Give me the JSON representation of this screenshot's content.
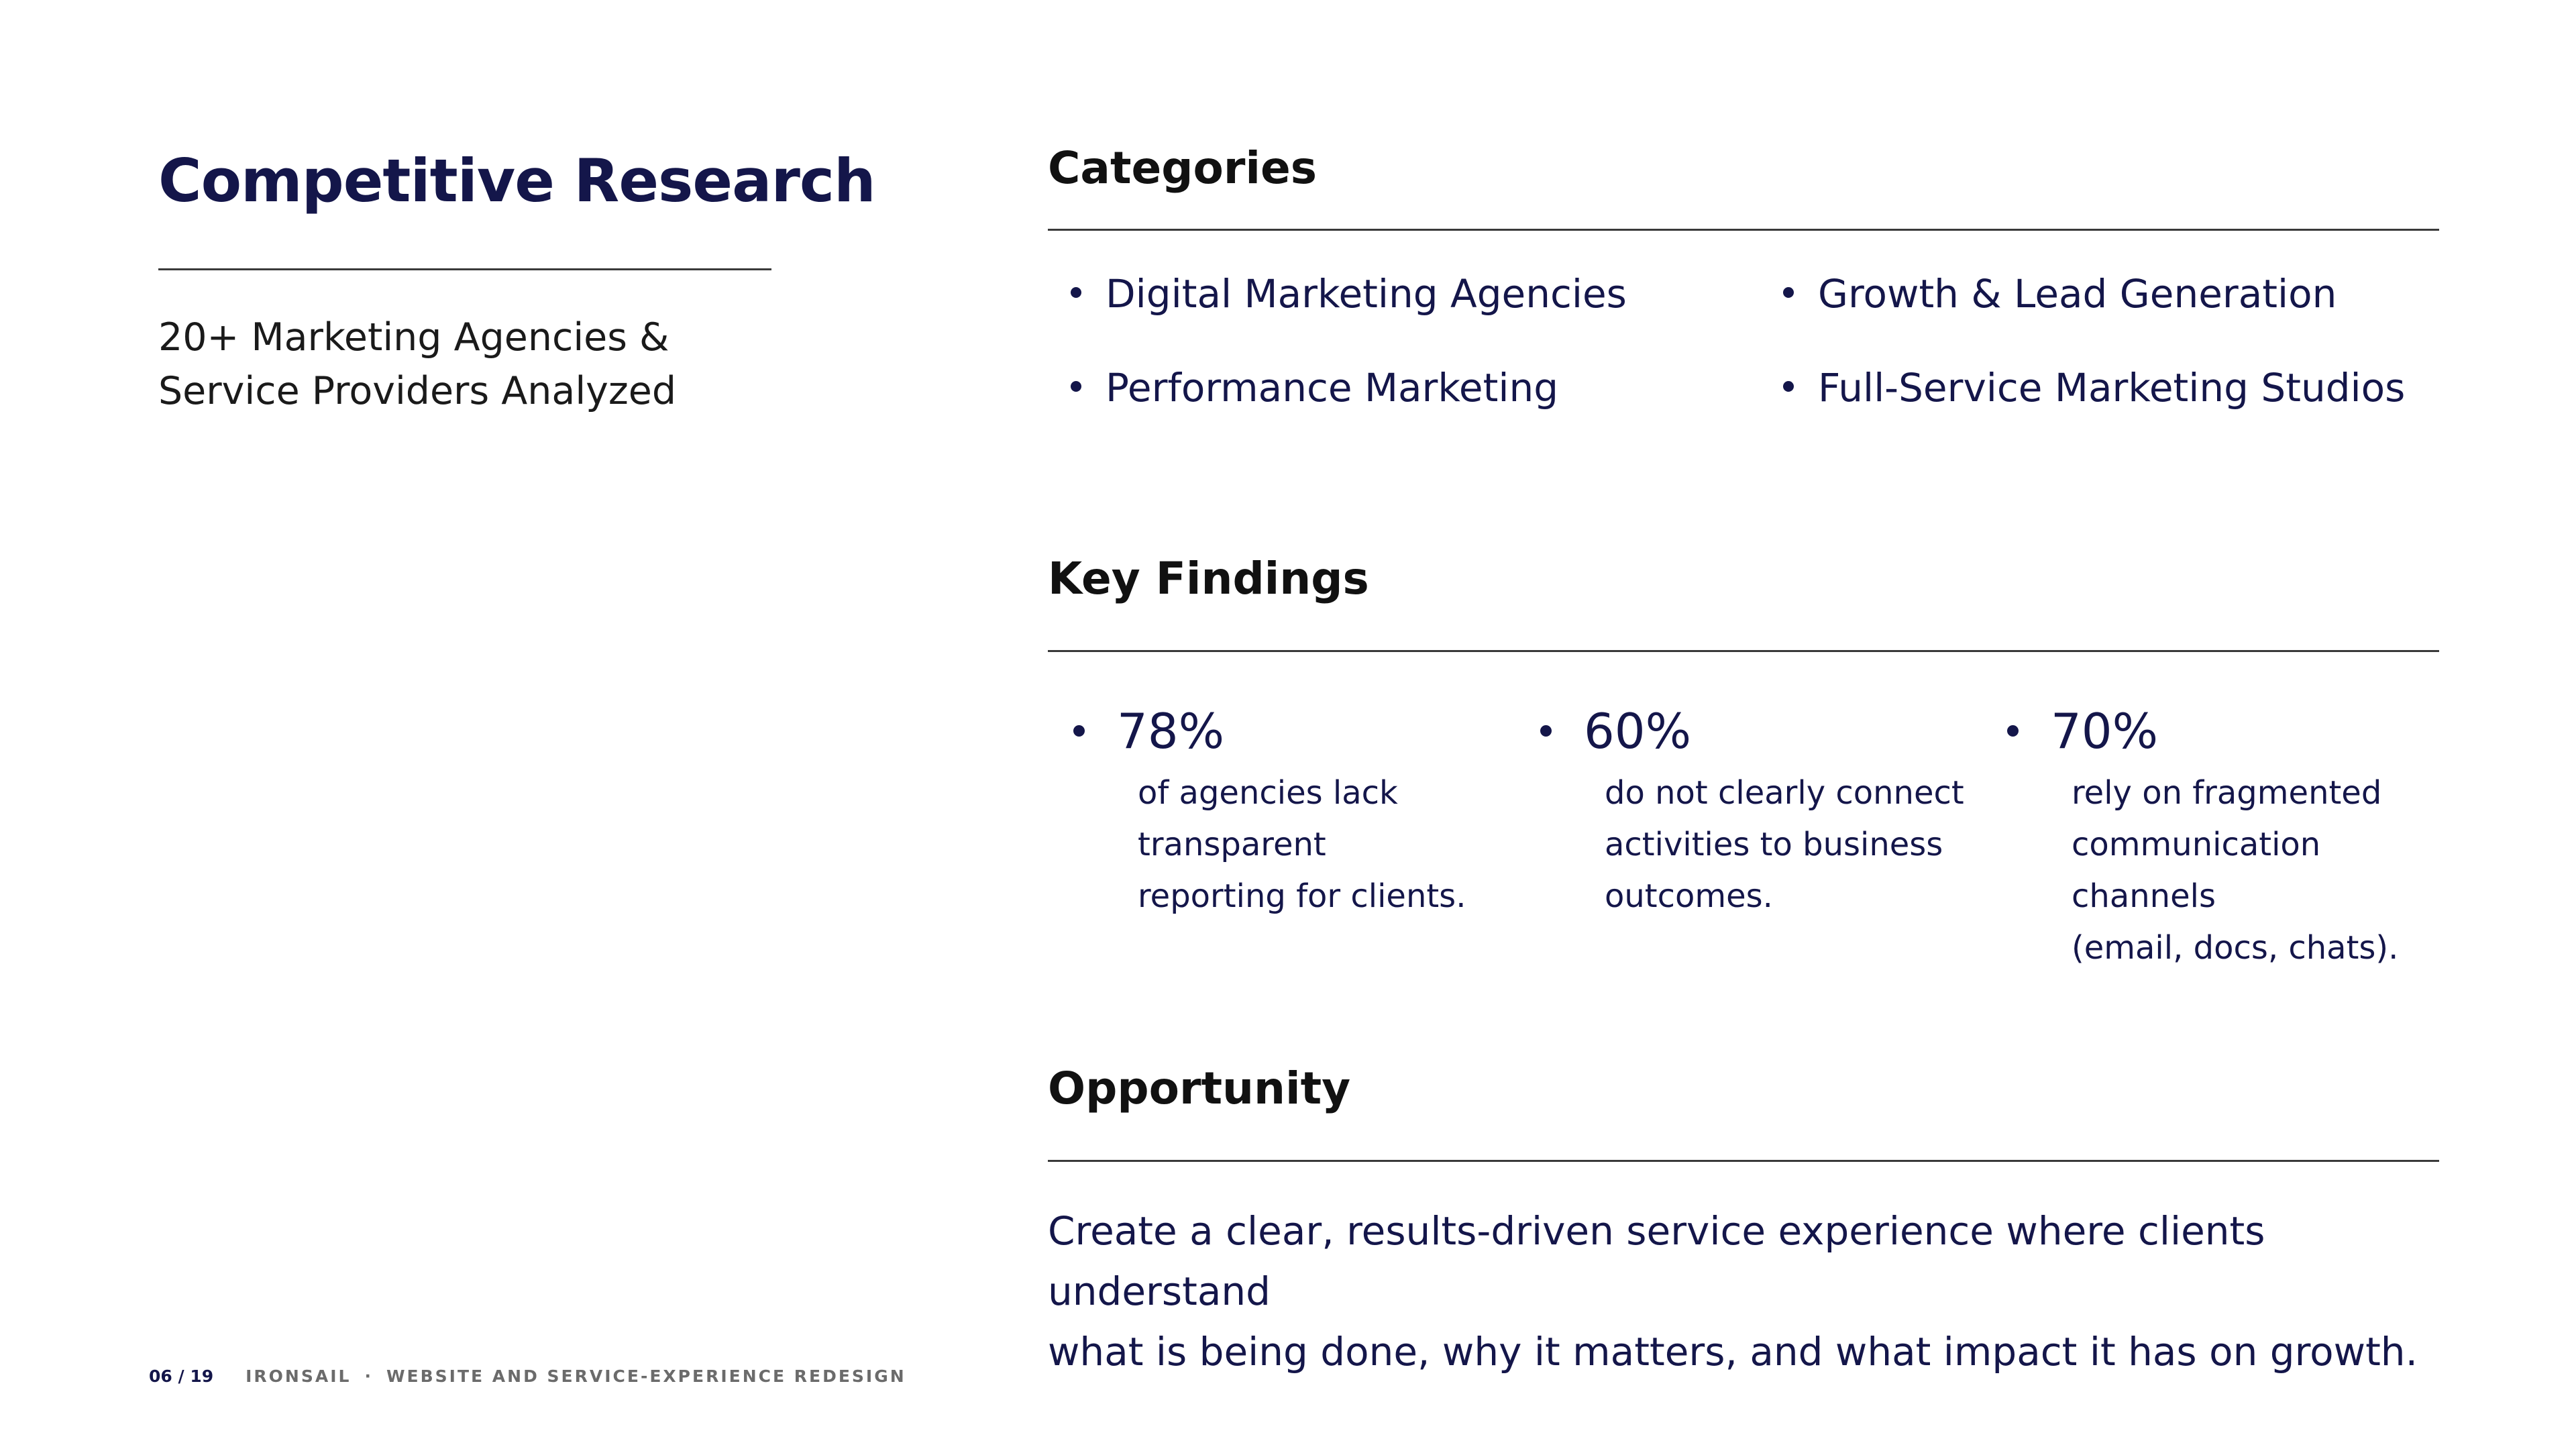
{
  "left": {
    "title": "Competitive Research",
    "subtitle_line1": "20+ Marketing Agencies &",
    "subtitle_line2": "Service Providers Analyzed"
  },
  "categories": {
    "heading": "Categories",
    "items": [
      "Digital Marketing Agencies",
      "Growth & Lead Generation",
      "Performance Marketing",
      "Full-Service Marketing Studios"
    ]
  },
  "key_findings": {
    "heading": "Key Findings",
    "items": [
      {
        "stat": "78%",
        "lines": [
          "of agencies lack",
          "transparent",
          "reporting for clients."
        ]
      },
      {
        "stat": "60%",
        "lines": [
          "do not clearly connect",
          "activities to business",
          "outcomes."
        ]
      },
      {
        "stat": "70%",
        "lines": [
          "rely on fragmented",
          "communication channels",
          "(email, docs, chats)."
        ]
      }
    ]
  },
  "opportunity": {
    "heading": "Opportunity",
    "line1": "Create a clear, results-driven service experience where clients understand",
    "line2": "what is being done, why it matters, and what impact it has on growth."
  },
  "footer": {
    "page_number": "06 / 19",
    "brand": "IRONSAIL",
    "separator": "·",
    "project": "WEBSITE AND SERVICE-EXPERIENCE REDESIGN"
  },
  "colors": {
    "navy": "#14164a",
    "text": "#111111",
    "rule": "#3a3a3a",
    "muted": "#6b6b6b"
  }
}
